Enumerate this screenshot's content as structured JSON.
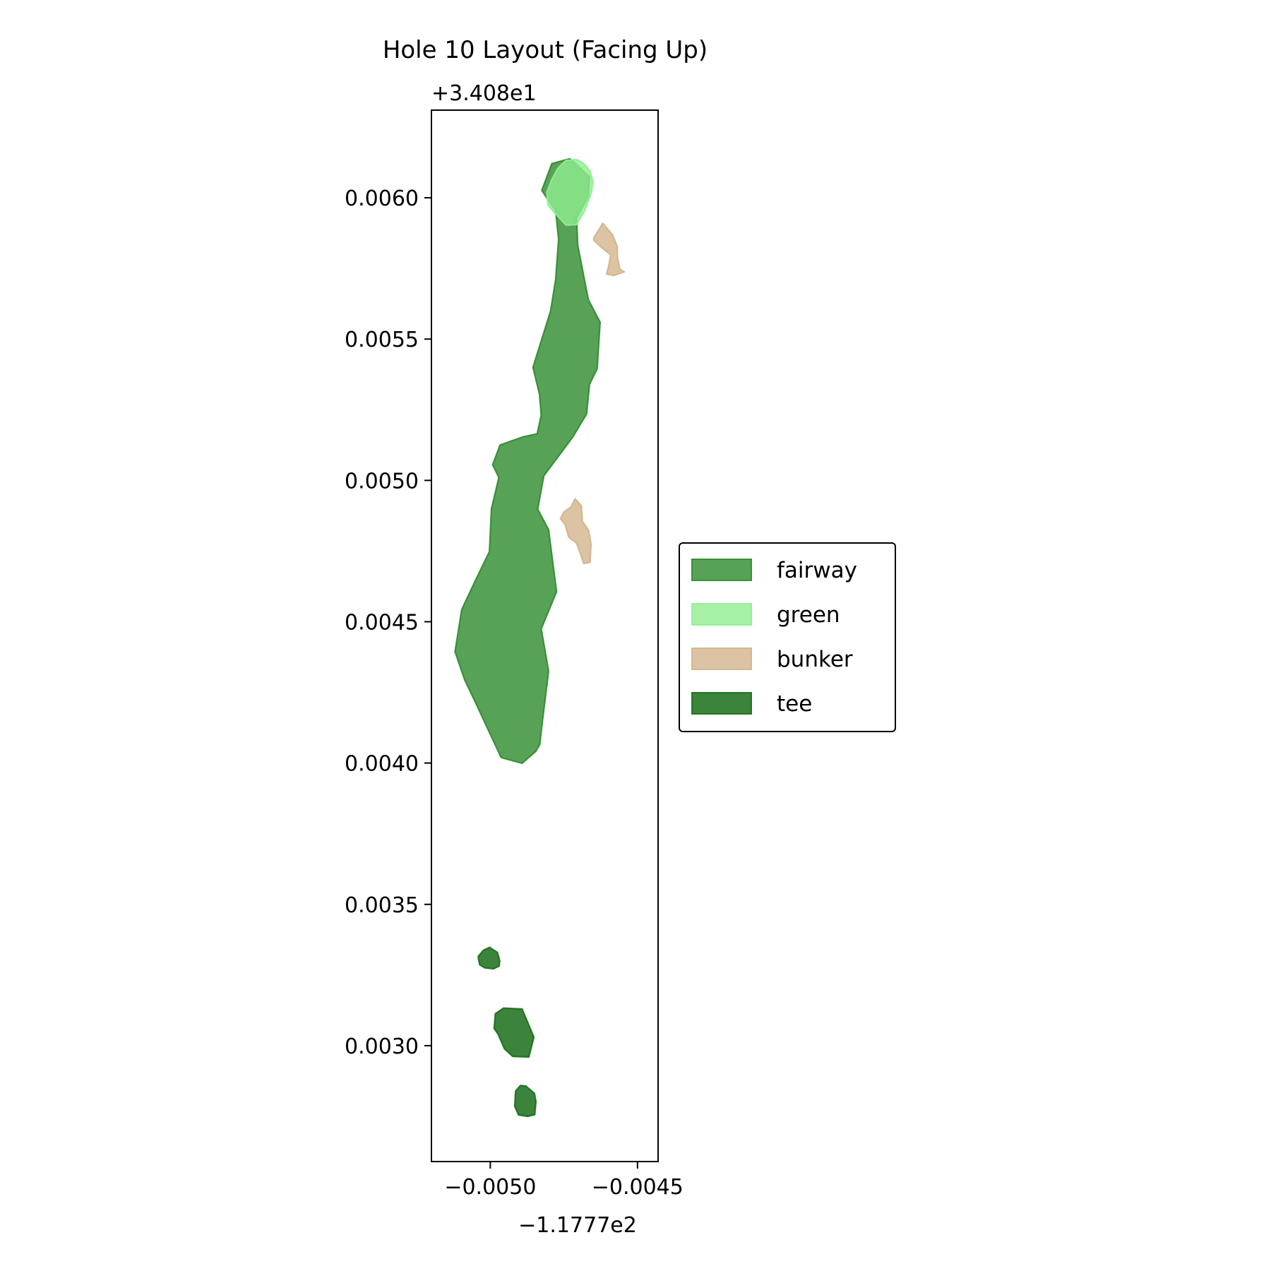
{
  "chart_data": {
    "type": "map",
    "title": "Hole 10 Layout (Facing Up)",
    "x_offset_label": "−1.1777e2",
    "y_offset_label": "+3.408e1",
    "xlim": [
      -0.0052,
      -0.00443
    ],
    "ylim": [
      0.00259,
      0.00631
    ],
    "x_ticks": [
      {
        "value": -0.005,
        "label": "−0.0050"
      },
      {
        "value": -0.0045,
        "label": "−0.0045"
      }
    ],
    "y_ticks": [
      {
        "value": 0.003,
        "label": "0.0030"
      },
      {
        "value": 0.0035,
        "label": "0.0035"
      },
      {
        "value": 0.004,
        "label": "0.0040"
      },
      {
        "value": 0.0045,
        "label": "0.0045"
      },
      {
        "value": 0.005,
        "label": "0.0050"
      },
      {
        "value": 0.0055,
        "label": "0.0055"
      },
      {
        "value": 0.006,
        "label": "0.0060"
      }
    ],
    "legend_position": "center-right",
    "legend": [
      {
        "name": "fairway",
        "fill": "#2e8b2e",
        "edge": "#2e8b2e",
        "alpha": 0.8
      },
      {
        "name": "green",
        "fill": "#90ee90",
        "edge": "#90ee90",
        "alpha": 0.8
      },
      {
        "name": "bunker",
        "fill": "#d2b48c",
        "edge": "#d2b48c",
        "alpha": 0.8
      },
      {
        "name": "tee",
        "fill": "#1a6e1a",
        "edge": "#1a6e1a",
        "alpha": 0.85
      }
    ],
    "features": [
      {
        "class": "fairway",
        "points": [
          [
            -0.004707,
            0.005935
          ],
          [
            -0.004703,
            0.005832
          ],
          [
            -0.004667,
            0.00564
          ],
          [
            -0.004627,
            0.00556
          ],
          [
            -0.004637,
            0.005395
          ],
          [
            -0.004663,
            0.00534
          ],
          [
            -0.004673,
            0.005235
          ],
          [
            -0.00472,
            0.005153
          ],
          [
            -0.004818,
            0.005016
          ],
          [
            -0.004839,
            0.004898
          ],
          [
            -0.004802,
            0.004826
          ],
          [
            -0.004775,
            0.004606
          ],
          [
            -0.004827,
            0.004475
          ],
          [
            -0.004802,
            0.004325
          ],
          [
            -0.004823,
            0.004148
          ],
          [
            -0.004832,
            0.004065
          ],
          [
            -0.004846,
            0.004041
          ],
          [
            -0.004892,
            0.003999
          ],
          [
            -0.004958,
            0.004018
          ],
          [
            -0.004964,
            0.004021
          ],
          [
            -0.005055,
            0.004225
          ],
          [
            -0.005087,
            0.004294
          ],
          [
            -0.00512,
            0.004394
          ],
          [
            -0.005097,
            0.004543
          ],
          [
            -0.005051,
            0.004645
          ],
          [
            -0.005003,
            0.004748
          ],
          [
            -0.004996,
            0.0049
          ],
          [
            -0.004971,
            0.00501
          ],
          [
            -0.004992,
            0.005055
          ],
          [
            -0.004967,
            0.005125
          ],
          [
            -0.004889,
            0.005154
          ],
          [
            -0.004841,
            0.005165
          ],
          [
            -0.004827,
            0.005231
          ],
          [
            -0.004833,
            0.005305
          ],
          [
            -0.004855,
            0.0054
          ],
          [
            -0.004795,
            0.0056
          ],
          [
            -0.004778,
            0.005711
          ],
          [
            -0.004768,
            0.005853
          ],
          [
            -0.004778,
            0.005954
          ],
          [
            -0.004825,
            0.006026
          ],
          [
            -0.004791,
            0.006121
          ],
          [
            -0.00473,
            0.006138
          ],
          [
            -0.004708,
            0.006119
          ],
          [
            -0.004663,
            0.006074
          ],
          [
            -0.004667,
            0.006005
          ],
          [
            -0.00472,
            0.005902
          ],
          [
            -0.004707,
            0.005935
          ]
        ]
      },
      {
        "class": "green",
        "points": [
          [
            -0.004743,
            0.006132
          ],
          [
            -0.004707,
            0.006135
          ],
          [
            -0.004683,
            0.006122
          ],
          [
            -0.004661,
            0.006095
          ],
          [
            -0.004652,
            0.006059
          ],
          [
            -0.004656,
            0.00602
          ],
          [
            -0.004679,
            0.005955
          ],
          [
            -0.004707,
            0.005905
          ],
          [
            -0.004743,
            0.005903
          ],
          [
            -0.004783,
            0.005949
          ],
          [
            -0.004804,
            0.005974
          ],
          [
            -0.004808,
            0.006019
          ],
          [
            -0.004792,
            0.006063
          ],
          [
            -0.004771,
            0.006104
          ],
          [
            -0.004743,
            0.006132
          ]
        ]
      },
      {
        "class": "bunker",
        "points": [
          [
            -0.004618,
            0.00591
          ],
          [
            -0.004585,
            0.005869
          ],
          [
            -0.004569,
            0.005828
          ],
          [
            -0.004568,
            0.005788
          ],
          [
            -0.00456,
            0.005748
          ],
          [
            -0.004545,
            0.005738
          ],
          [
            -0.004581,
            0.005725
          ],
          [
            -0.004605,
            0.00573
          ],
          [
            -0.004598,
            0.005758
          ],
          [
            -0.004591,
            0.005798
          ],
          [
            -0.004623,
            0.005825
          ],
          [
            -0.004649,
            0.00585
          ],
          [
            -0.004647,
            0.005862
          ],
          [
            -0.004631,
            0.005887
          ],
          [
            -0.004618,
            0.00591
          ]
        ]
      },
      {
        "class": "bunker",
        "points": [
          [
            -0.004712,
            0.004935
          ],
          [
            -0.004691,
            0.004911
          ],
          [
            -0.004687,
            0.004855
          ],
          [
            -0.004666,
            0.004823
          ],
          [
            -0.004658,
            0.004775
          ],
          [
            -0.004661,
            0.00471
          ],
          [
            -0.004683,
            0.004706
          ],
          [
            -0.004691,
            0.004732
          ],
          [
            -0.004707,
            0.004778
          ],
          [
            -0.004734,
            0.0048
          ],
          [
            -0.004746,
            0.004844
          ],
          [
            -0.004762,
            0.004865
          ],
          [
            -0.00475,
            0.004888
          ],
          [
            -0.004726,
            0.004906
          ],
          [
            -0.004712,
            0.004935
          ]
        ]
      },
      {
        "class": "tee",
        "points": [
          [
            -0.005002,
            0.003348
          ],
          [
            -0.004994,
            0.003342
          ],
          [
            -0.004976,
            0.00333
          ],
          [
            -0.004968,
            0.003301
          ],
          [
            -0.00497,
            0.003282
          ],
          [
            -0.004989,
            0.003272
          ],
          [
            -0.005018,
            0.003275
          ],
          [
            -0.005036,
            0.003286
          ],
          [
            -0.00504,
            0.003306
          ],
          [
            -0.005041,
            0.003316
          ],
          [
            -0.005023,
            0.003338
          ],
          [
            -0.005002,
            0.003348
          ]
        ]
      },
      {
        "class": "tee",
        "points": [
          [
            -0.004955,
            0.003133
          ],
          [
            -0.004899,
            0.00313
          ],
          [
            -0.004892,
            0.00313
          ],
          [
            -0.004852,
            0.00303
          ],
          [
            -0.004869,
            0.00296
          ],
          [
            -0.004924,
            0.002962
          ],
          [
            -0.004952,
            0.002989
          ],
          [
            -0.004973,
            0.00304
          ],
          [
            -0.004987,
            0.003061
          ],
          [
            -0.004983,
            0.003113
          ],
          [
            -0.004955,
            0.003133
          ]
        ]
      },
      {
        "class": "tee",
        "points": [
          [
            -0.004898,
            0.002859
          ],
          [
            -0.004879,
            0.002857
          ],
          [
            -0.00485,
            0.002831
          ],
          [
            -0.004845,
            0.002802
          ],
          [
            -0.004849,
            0.002756
          ],
          [
            -0.004873,
            0.00275
          ],
          [
            -0.004904,
            0.002755
          ],
          [
            -0.004917,
            0.002785
          ],
          [
            -0.004914,
            0.002839
          ],
          [
            -0.004898,
            0.002859
          ]
        ]
      }
    ]
  }
}
